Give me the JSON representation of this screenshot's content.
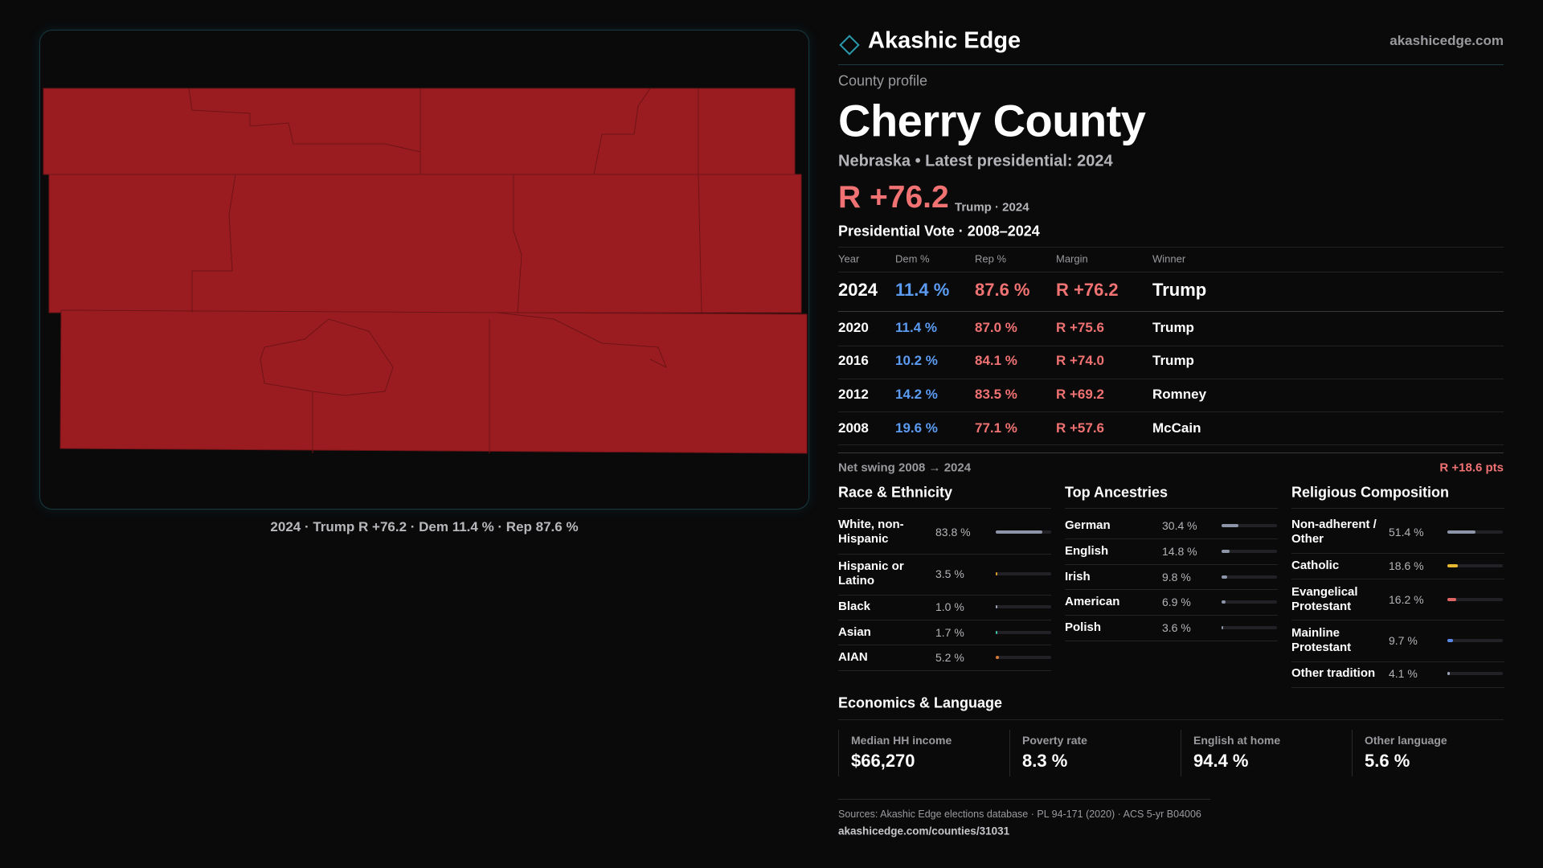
{
  "header": {
    "brand": "Akashic Edge",
    "site": "akashicedge.com"
  },
  "profile": {
    "kicker": "County profile",
    "name": "Cherry County",
    "subtitle": "Nebraska • Latest presidential: 2024",
    "margin": "R +76.2",
    "margin_note": "Trump · 2024"
  },
  "map": {
    "caption": "2024 · Trump R +76.2 · Dem 11.4 % · Rep 87.6 %"
  },
  "vote_table": {
    "title": "Presidential Vote · 2008–2024",
    "columns": [
      "Year",
      "Dem %",
      "Rep %",
      "Margin",
      "Winner"
    ],
    "rows": [
      [
        "2024",
        "11.4 %",
        "87.6 %",
        "R +76.2",
        "Trump"
      ],
      [
        "2020",
        "11.4 %",
        "87.0 %",
        "R +75.6",
        "Trump"
      ],
      [
        "2016",
        "10.2 %",
        "84.1 %",
        "R +74.0",
        "Trump"
      ],
      [
        "2012",
        "14.2 %",
        "83.5 %",
        "R +69.2",
        "Romney"
      ],
      [
        "2008",
        "19.6 %",
        "77.1 %",
        "R +57.6",
        "McCain"
      ]
    ]
  },
  "swing": {
    "label": "Net swing 2008 → 2024",
    "value": "R +18.6 pts"
  },
  "race": {
    "title": "Race & Ethnicity",
    "rows": [
      {
        "label": "White, non-Hispanic",
        "value": 83.8,
        "value_label": "83.8 %",
        "color": "#8d96a8"
      },
      {
        "label": "Hispanic or Latino",
        "value": 3.5,
        "value_label": "3.5 %",
        "color": "#e0a030"
      },
      {
        "label": "Black",
        "value": 1.0,
        "value_label": "1.0 %",
        "color": "#9aa6b8"
      },
      {
        "label": "Asian",
        "value": 1.7,
        "value_label": "1.7 %",
        "color": "#3cc0a8"
      },
      {
        "label": "AIAN",
        "value": 5.2,
        "value_label": "5.2 %",
        "color": "#d87a30"
      }
    ]
  },
  "ancestry": {
    "title": "Top Ancestries",
    "rows": [
      {
        "label": "German",
        "value": 30.4,
        "value_label": "30.4 %",
        "color": "#8d96a8"
      },
      {
        "label": "English",
        "value": 14.8,
        "value_label": "14.8 %",
        "color": "#8d96a8"
      },
      {
        "label": "Irish",
        "value": 9.8,
        "value_label": "9.8 %",
        "color": "#8d96a8"
      },
      {
        "label": "American",
        "value": 6.9,
        "value_label": "6.9 %",
        "color": "#8d96a8"
      },
      {
        "label": "Polish",
        "value": 3.6,
        "value_label": "3.6 %",
        "color": "#8d96a8"
      }
    ]
  },
  "religion": {
    "title": "Religious Composition",
    "rows": [
      {
        "label": "Non-adherent / Other",
        "value": 51.4,
        "value_label": "51.4 %",
        "color": "#8d96a8"
      },
      {
        "label": "Catholic",
        "value": 18.6,
        "value_label": "18.6 %",
        "color": "#e8b830"
      },
      {
        "label": "Evangelical Protestant",
        "value": 16.2,
        "value_label": "16.2 %",
        "color": "#e06464"
      },
      {
        "label": "Mainline Protestant",
        "value": 9.7,
        "value_label": "9.7 %",
        "color": "#5a8ae8"
      },
      {
        "label": "Other tradition",
        "value": 4.1,
        "value_label": "4.1 %",
        "color": "#9aa6b8"
      }
    ]
  },
  "economics": {
    "title": "Economics & Language",
    "cells": [
      {
        "label": "Median HH income",
        "value": "$66,270"
      },
      {
        "label": "Poverty rate",
        "value": "8.3 %"
      },
      {
        "label": "English at home",
        "value": "94.4 %"
      },
      {
        "label": "Other language",
        "value": "5.6 %"
      }
    ]
  },
  "footer": {
    "sources": "Sources: Akashic Edge elections database · PL 94-171 (2020) · ACS 5-yr B04006",
    "url": "akashicedge.com/counties/31031"
  }
}
